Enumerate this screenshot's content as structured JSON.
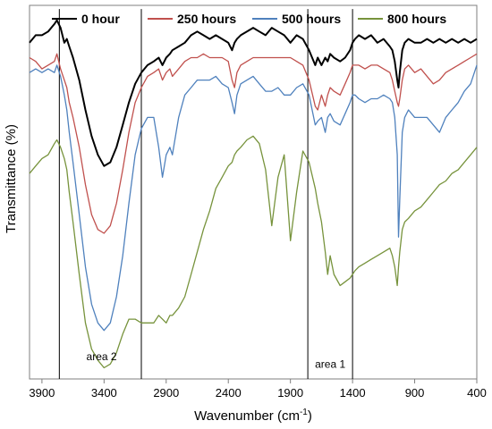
{
  "chart_data": {
    "type": "line",
    "xlabel": "Wavenumber (cm",
    "xlabel_sup": "-1",
    "xlabel_end": ")",
    "ylabel": "Transmittance (%)",
    "xlim": [
      4000,
      400
    ],
    "x_ticks": [
      3900,
      3400,
      2900,
      2400,
      1900,
      1400,
      900,
      400
    ],
    "ylim": [
      0,
      100
    ],
    "legend_position": "top",
    "vertical_lines": [
      3760,
      3100,
      1760,
      1400
    ],
    "annotations": [
      {
        "text": "area 2",
        "x": 3420,
        "y": 5
      },
      {
        "text": "area 1",
        "x": 1580,
        "y": 3
      }
    ],
    "series": [
      {
        "name": "0 hour",
        "color": "#000000",
        "x": [
          4000,
          3950,
          3900,
          3850,
          3800,
          3780,
          3750,
          3720,
          3700,
          3680,
          3650,
          3600,
          3550,
          3500,
          3450,
          3400,
          3350,
          3300,
          3250,
          3200,
          3150,
          3100,
          3050,
          3000,
          2960,
          2930,
          2900,
          2870,
          2850,
          2800,
          2750,
          2700,
          2650,
          2600,
          2550,
          2500,
          2450,
          2400,
          2370,
          2350,
          2330,
          2300,
          2250,
          2200,
          2150,
          2100,
          2050,
          2000,
          1950,
          1900,
          1850,
          1800,
          1750,
          1700,
          1680,
          1650,
          1620,
          1600,
          1580,
          1550,
          1500,
          1460,
          1420,
          1400,
          1380,
          1350,
          1300,
          1250,
          1200,
          1150,
          1100,
          1080,
          1060,
          1040,
          1030,
          1020,
          1000,
          980,
          950,
          900,
          850,
          800,
          750,
          700,
          650,
          600,
          550,
          500,
          450,
          400
        ],
        "y": [
          90,
          92,
          92,
          93,
          95,
          96,
          94,
          90,
          91,
          89,
          86,
          80,
          72,
          65,
          60,
          57,
          58,
          62,
          68,
          74,
          79,
          82,
          84,
          85,
          86,
          84,
          86,
          87,
          88,
          89,
          90,
          92,
          93,
          92,
          91,
          92,
          91,
          90,
          88,
          90,
          91,
          92,
          93,
          94,
          93,
          92,
          94,
          93,
          92,
          90,
          92,
          91,
          88,
          84,
          86,
          84,
          86,
          85,
          87,
          86,
          85,
          86,
          88,
          90,
          91,
          92,
          91,
          92,
          90,
          91,
          89,
          88,
          85,
          80,
          78,
          82,
          88,
          90,
          91,
          90,
          90,
          91,
          90,
          91,
          90,
          91,
          90,
          91,
          90,
          91
        ]
      },
      {
        "name": "250 hours",
        "color": "#c0504d",
        "x": [
          4000,
          3950,
          3900,
          3850,
          3800,
          3780,
          3750,
          3720,
          3700,
          3680,
          3650,
          3600,
          3550,
          3500,
          3450,
          3400,
          3350,
          3300,
          3250,
          3200,
          3150,
          3100,
          3050,
          3000,
          2960,
          2930,
          2900,
          2870,
          2850,
          2800,
          2750,
          2700,
          2650,
          2600,
          2550,
          2500,
          2450,
          2400,
          2370,
          2350,
          2330,
          2300,
          2250,
          2200,
          2150,
          2100,
          2050,
          2000,
          1950,
          1900,
          1850,
          1800,
          1750,
          1700,
          1680,
          1650,
          1620,
          1600,
          1580,
          1550,
          1500,
          1460,
          1420,
          1400,
          1380,
          1350,
          1300,
          1250,
          1200,
          1150,
          1100,
          1080,
          1060,
          1040,
          1030,
          1020,
          1000,
          980,
          950,
          900,
          850,
          800,
          750,
          700,
          650,
          600,
          550,
          500,
          450,
          400
        ],
        "y": [
          86,
          85,
          83,
          84,
          85,
          87,
          83,
          80,
          78,
          74,
          70,
          62,
          52,
          44,
          40,
          39,
          41,
          47,
          56,
          66,
          74,
          78,
          81,
          82,
          83,
          80,
          82,
          83,
          81,
          83,
          85,
          86,
          86,
          87,
          86,
          86,
          86,
          85,
          80,
          78,
          82,
          84,
          85,
          86,
          86,
          86,
          86,
          86,
          86,
          86,
          85,
          84,
          80,
          73,
          72,
          76,
          73,
          76,
          78,
          77,
          76,
          79,
          82,
          84,
          84,
          84,
          83,
          84,
          84,
          83,
          82,
          80,
          77,
          74,
          73,
          75,
          80,
          83,
          84,
          82,
          83,
          81,
          79,
          80,
          82,
          83,
          84,
          85,
          86,
          87
        ]
      },
      {
        "name": "500 hours",
        "color": "#4f81bd",
        "x": [
          4000,
          3950,
          3900,
          3850,
          3800,
          3780,
          3750,
          3720,
          3700,
          3680,
          3650,
          3600,
          3550,
          3500,
          3450,
          3400,
          3350,
          3300,
          3250,
          3200,
          3150,
          3100,
          3050,
          3000,
          2960,
          2930,
          2900,
          2870,
          2850,
          2800,
          2750,
          2700,
          2650,
          2600,
          2550,
          2500,
          2450,
          2400,
          2370,
          2350,
          2330,
          2300,
          2250,
          2200,
          2150,
          2100,
          2050,
          2000,
          1950,
          1900,
          1850,
          1800,
          1750,
          1700,
          1680,
          1650,
          1620,
          1600,
          1580,
          1550,
          1500,
          1460,
          1420,
          1400,
          1380,
          1350,
          1300,
          1250,
          1200,
          1150,
          1100,
          1080,
          1060,
          1040,
          1030,
          1020,
          1000,
          980,
          950,
          900,
          850,
          800,
          750,
          700,
          650,
          600,
          550,
          500,
          450,
          400
        ],
        "y": [
          82,
          83,
          82,
          83,
          82,
          84,
          81,
          76,
          72,
          66,
          58,
          44,
          30,
          20,
          15,
          13,
          15,
          22,
          33,
          47,
          60,
          67,
          70,
          70,
          62,
          54,
          60,
          62,
          60,
          70,
          76,
          78,
          80,
          80,
          80,
          81,
          79,
          78,
          74,
          71,
          76,
          79,
          80,
          81,
          79,
          77,
          77,
          78,
          76,
          76,
          78,
          79,
          76,
          68,
          69,
          70,
          66,
          70,
          71,
          69,
          68,
          71,
          74,
          76,
          76,
          75,
          74,
          75,
          75,
          76,
          75,
          74,
          70,
          60,
          38,
          48,
          66,
          70,
          72,
          70,
          70,
          70,
          68,
          66,
          70,
          72,
          74,
          77,
          79,
          84
        ]
      },
      {
        "name": "800 hours",
        "color": "#77933c",
        "x": [
          4000,
          3950,
          3900,
          3850,
          3800,
          3780,
          3750,
          3720,
          3700,
          3680,
          3650,
          3600,
          3550,
          3500,
          3450,
          3400,
          3350,
          3300,
          3250,
          3200,
          3150,
          3100,
          3050,
          3000,
          2960,
          2930,
          2900,
          2870,
          2850,
          2800,
          2750,
          2700,
          2650,
          2600,
          2550,
          2500,
          2450,
          2400,
          2370,
          2350,
          2330,
          2300,
          2250,
          2200,
          2150,
          2100,
          2050,
          2000,
          1950,
          1900,
          1850,
          1800,
          1750,
          1700,
          1680,
          1650,
          1620,
          1600,
          1580,
          1550,
          1500,
          1460,
          1420,
          1400,
          1380,
          1350,
          1300,
          1250,
          1200,
          1150,
          1100,
          1080,
          1060,
          1040,
          1030,
          1020,
          1000,
          980,
          950,
          900,
          850,
          800,
          750,
          700,
          650,
          600,
          550,
          500,
          450,
          400
        ],
        "y": [
          55,
          57,
          59,
          60,
          63,
          64,
          62,
          59,
          56,
          50,
          42,
          28,
          15,
          8,
          5,
          3,
          4,
          7,
          12,
          16,
          16,
          15,
          15,
          15,
          17,
          16,
          15,
          17,
          17,
          19,
          22,
          28,
          34,
          40,
          45,
          51,
          54,
          57,
          58,
          60,
          61,
          62,
          64,
          65,
          63,
          56,
          41,
          54,
          60,
          37,
          50,
          61,
          58,
          51,
          47,
          42,
          34,
          28,
          33,
          28,
          25,
          26,
          27,
          28,
          29,
          30,
          31,
          32,
          33,
          34,
          35,
          33,
          30,
          25,
          30,
          34,
          40,
          42,
          43,
          45,
          46,
          48,
          50,
          52,
          53,
          55,
          56,
          58,
          60,
          62
        ]
      }
    ]
  }
}
